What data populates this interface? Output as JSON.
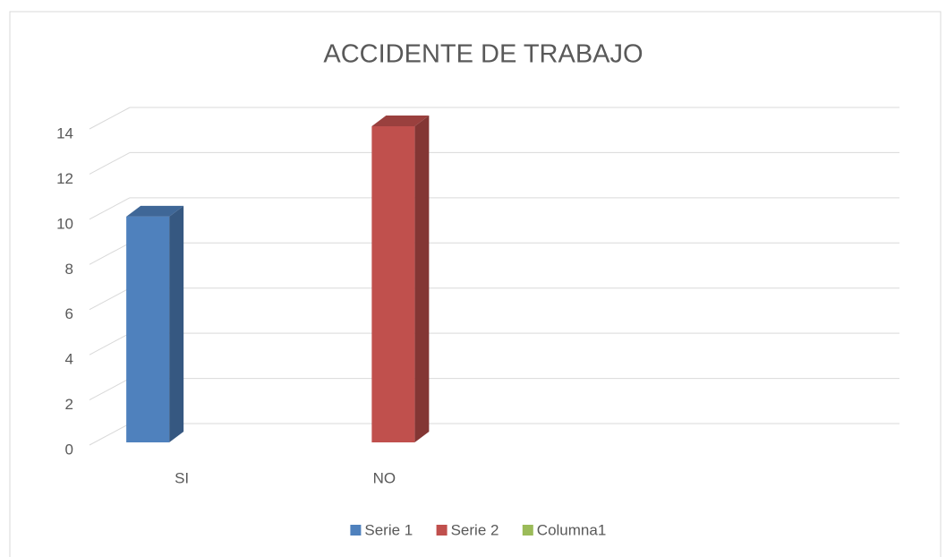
{
  "chart_data": {
    "type": "bar3d",
    "title": "ACCIDENTE DE TRABAJO",
    "categories": [
      "SI",
      "NO",
      null,
      null
    ],
    "series": [
      {
        "name": "Serie 1",
        "color": "#4f81bd",
        "values": [
          10,
          null,
          null,
          null
        ]
      },
      {
        "name": "Serie 2",
        "color": "#c0504d",
        "values": [
          null,
          14,
          null,
          null
        ]
      },
      {
        "name": "Columna1",
        "color": "#9bbb59",
        "values": [
          null,
          null,
          null,
          null
        ]
      }
    ],
    "ylim": [
      0,
      14
    ],
    "yticks": [
      0,
      2,
      4,
      6,
      8,
      10,
      12,
      14
    ],
    "grid": true,
    "legend": "bottom"
  }
}
